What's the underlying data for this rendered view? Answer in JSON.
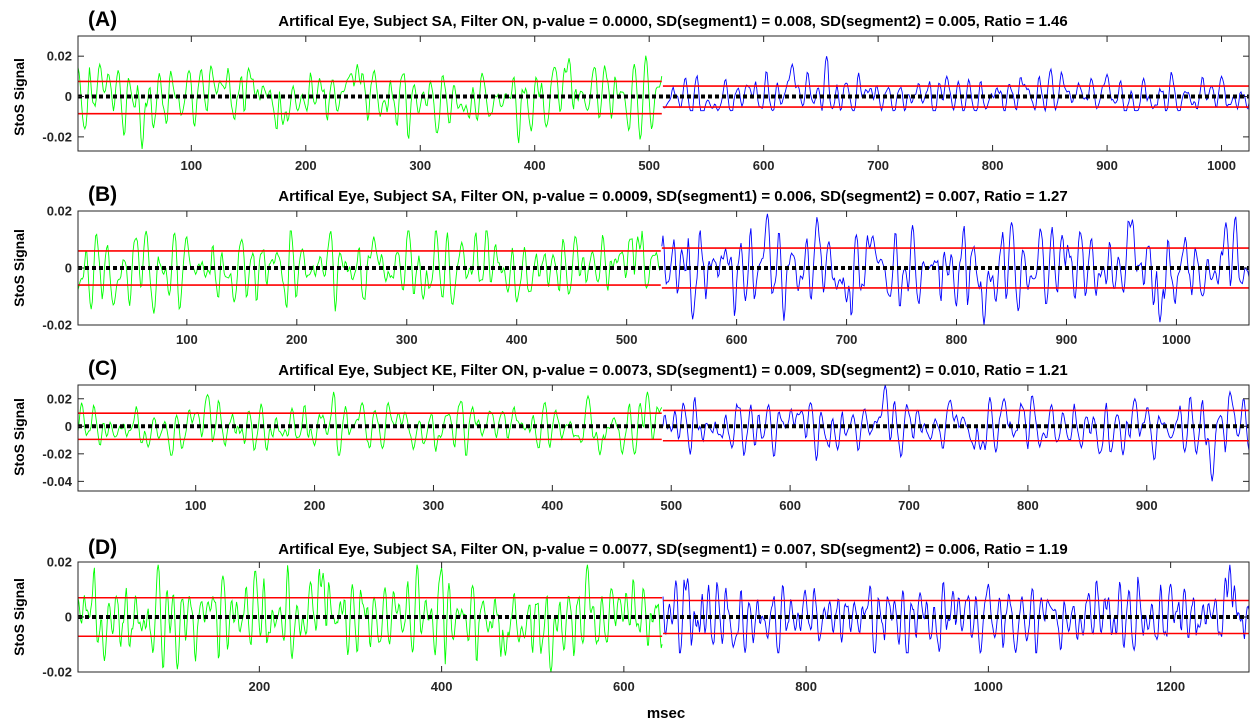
{
  "figure": {
    "xlabel": "msec",
    "colors": {
      "segment1": "#00ff00",
      "segment2": "#0000ff",
      "sd_line": "#ff0000",
      "mean_line": "#000000",
      "axes": "#262626"
    }
  },
  "chart_data": [
    {
      "type": "line",
      "panel_label": "(A)",
      "title": "Artifical Eye, Subject SA, Filter ON, p-value = 0.0000, SD(segment1) = 0.008, SD(segment2) = 0.005, Ratio = 1.46",
      "ylabel": "StoS Signal",
      "xlabel": "",
      "xlim": [
        1,
        1024
      ],
      "ylim": [
        -0.027,
        0.03
      ],
      "xticks": [
        100,
        200,
        300,
        400,
        500,
        600,
        700,
        800,
        900,
        1000
      ],
      "yticks": [
        -0.02,
        0,
        0.02
      ],
      "ytick_labels": [
        "-0.02",
        "0",
        "0.02"
      ],
      "split_x": 512,
      "mean": 0,
      "series": [
        {
          "segment": 1,
          "x_range": [
            1,
            511
          ],
          "sd": 0.008,
          "max": 0.029,
          "min": -0.026,
          "peaks": [
            [
              20,
              0.016
            ],
            [
              57,
              0.029
            ],
            [
              150,
              0.014
            ],
            [
              245,
              0.016
            ],
            [
              430,
              0.019
            ]
          ],
          "troughs": [
            [
              7,
              -0.016
            ],
            [
              57,
              -0.026
            ],
            [
              180,
              -0.014
            ],
            [
              410,
              -0.015
            ]
          ]
        },
        {
          "segment": 2,
          "x_range": [
            512,
            1024
          ],
          "sd": 0.005,
          "max": 0.02,
          "min": -0.007,
          "peaks": [
            [
              625,
              0.016
            ],
            [
              655,
              0.02
            ],
            [
              760,
              0.01
            ],
            [
              900,
              0.011
            ],
            [
              1000,
              0.01
            ]
          ],
          "troughs": [
            [
              560,
              -0.007
            ],
            [
              660,
              -0.006
            ],
            [
              940,
              -0.006
            ]
          ]
        }
      ],
      "hlines": [
        {
          "segment": 1,
          "y": 0.0075
        },
        {
          "segment": 1,
          "y": -0.0085
        },
        {
          "segment": 2,
          "y": 0.0052
        },
        {
          "segment": 2,
          "y": -0.0052
        }
      ]
    },
    {
      "type": "line",
      "panel_label": "(B)",
      "title": "Artifical Eye, Subject SA, Filter ON, p-value = 0.0009, SD(segment1) = 0.006, SD(segment2) = 0.007, Ratio = 1.27",
      "ylabel": "StoS Signal",
      "xlabel": "",
      "xlim": [
        1,
        1066
      ],
      "ylim": [
        -0.02,
        0.02
      ],
      "xticks": [
        100,
        200,
        300,
        400,
        500,
        600,
        700,
        800,
        900,
        1000
      ],
      "yticks": [
        -0.02,
        0,
        0.02
      ],
      "ytick_labels": [
        "-0.02",
        "0",
        "0.02"
      ],
      "split_x": 532,
      "mean": 0,
      "series": [
        {
          "segment": 1,
          "x_range": [
            1,
            531
          ],
          "sd": 0.006,
          "max": 0.013,
          "min": -0.016,
          "peaks": [
            [
              63,
              0.013
            ],
            [
              150,
              0.01
            ],
            [
              270,
              0.011
            ],
            [
              350,
              0.009
            ],
            [
              510,
              0.011
            ]
          ],
          "troughs": [
            [
              70,
              -0.016
            ],
            [
              143,
              -0.012
            ],
            [
              315,
              -0.011
            ],
            [
              400,
              -0.012
            ]
          ]
        },
        {
          "segment": 2,
          "x_range": [
            532,
            1066
          ],
          "sd": 0.007,
          "max": 0.019,
          "min": -0.02,
          "peaks": [
            [
              628,
              0.019
            ],
            [
              760,
              0.015
            ],
            [
              850,
              0.016
            ],
            [
              960,
              0.017
            ],
            [
              1045,
              0.016
            ]
          ],
          "troughs": [
            [
              560,
              -0.018
            ],
            [
              700,
              -0.012
            ],
            [
              825,
              -0.02
            ],
            [
              985,
              -0.019
            ]
          ]
        }
      ],
      "hlines": [
        {
          "segment": 1,
          "y": 0.006
        },
        {
          "segment": 1,
          "y": -0.006
        },
        {
          "segment": 2,
          "y": 0.007
        },
        {
          "segment": 2,
          "y": -0.007
        }
      ]
    },
    {
      "type": "line",
      "panel_label": "(C)",
      "title": "Artifical Eye, Subject KE, Filter ON, p-value = 0.0073, SD(segment1) = 0.009, SD(segment2) = 0.010, Ratio = 1.21",
      "ylabel": "StoS Signal",
      "xlabel": "",
      "xlim": [
        1,
        986
      ],
      "ylim": [
        -0.047,
        0.03
      ],
      "xticks": [
        100,
        200,
        300,
        400,
        500,
        600,
        700,
        800,
        900
      ],
      "yticks": [
        -0.04,
        -0.02,
        0,
        0.02
      ],
      "ytick_labels": [
        "-0.04",
        "-0.02",
        "0",
        "0.02"
      ],
      "split_x": 493,
      "mean": 0,
      "series": [
        {
          "segment": 1,
          "x_range": [
            1,
            492
          ],
          "sd": 0.009,
          "max": 0.025,
          "min": -0.021,
          "peaks": [
            [
              110,
              0.023
            ],
            [
              240,
              0.017
            ],
            [
              430,
              0.022
            ],
            [
              480,
              0.025
            ]
          ],
          "troughs": [
            [
              60,
              -0.015
            ],
            [
              200,
              -0.014
            ],
            [
              440,
              -0.021
            ]
          ]
        },
        {
          "segment": 2,
          "x_range": [
            493,
            986
          ],
          "sd": 0.01,
          "max": 0.03,
          "min": -0.04,
          "peaks": [
            [
              680,
              0.03
            ],
            [
              780,
              0.02
            ],
            [
              890,
              0.02
            ],
            [
              970,
              0.025
            ]
          ],
          "troughs": [
            [
              640,
              -0.017
            ],
            [
              760,
              -0.017
            ],
            [
              955,
              -0.04
            ]
          ]
        }
      ],
      "hlines": [
        {
          "segment": 1,
          "y": 0.0095
        },
        {
          "segment": 1,
          "y": -0.0095
        },
        {
          "segment": 2,
          "y": 0.0115
        },
        {
          "segment": 2,
          "y": -0.0105
        }
      ]
    },
    {
      "type": "line",
      "panel_label": "(D)",
      "title": "Artifical Eye, Subject SA, Filter ON, p-value = 0.0077, SD(segment1) = 0.007, SD(segment2) = 0.006, Ratio = 1.19",
      "ylabel": "StoS Signal",
      "xlabel": "msec",
      "xlim": [
        1,
        1286
      ],
      "ylim": [
        -0.02,
        0.02
      ],
      "xticks": [
        200,
        400,
        600,
        800,
        1000,
        1200
      ],
      "yticks": [
        -0.02,
        0,
        0.02
      ],
      "ytick_labels": [
        "-0.02",
        "0",
        "0.02"
      ],
      "split_x": 643,
      "mean": 0,
      "series": [
        {
          "segment": 1,
          "x_range": [
            1,
            642
          ],
          "sd": 0.007,
          "max": 0.019,
          "min": -0.02,
          "peaks": [
            [
              160,
              0.015
            ],
            [
              270,
              0.016
            ],
            [
              400,
              0.018
            ],
            [
              560,
              0.019
            ]
          ],
          "troughs": [
            [
              30,
              -0.016
            ],
            [
              110,
              -0.019
            ],
            [
              470,
              -0.014
            ],
            [
              520,
              -0.02
            ]
          ]
        },
        {
          "segment": 2,
          "x_range": [
            643,
            1286
          ],
          "sd": 0.006,
          "max": 0.019,
          "min": -0.013,
          "peaks": [
            [
              670,
              0.014
            ],
            [
              1000,
              0.012
            ],
            [
              1200,
              0.012
            ],
            [
              1265,
              0.019
            ]
          ],
          "troughs": [
            [
              720,
              -0.011
            ],
            [
              1030,
              -0.013
            ],
            [
              1160,
              -0.012
            ]
          ]
        }
      ],
      "hlines": [
        {
          "segment": 1,
          "y": 0.007
        },
        {
          "segment": 1,
          "y": -0.007
        },
        {
          "segment": 2,
          "y": 0.006
        },
        {
          "segment": 2,
          "y": -0.006
        }
      ]
    }
  ]
}
